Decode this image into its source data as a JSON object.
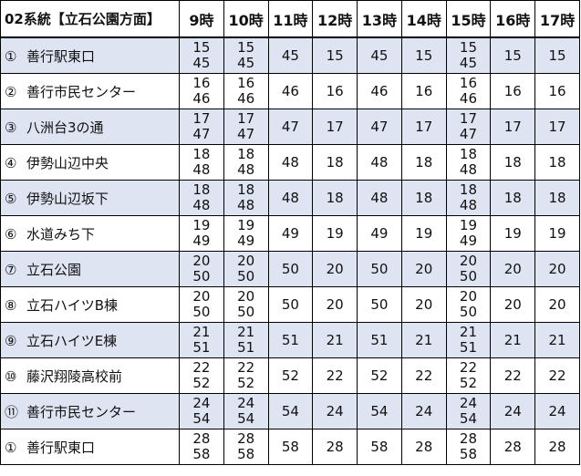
{
  "header": {
    "route": "02系統【立石公園方面】",
    "hours": [
      "9時",
      "10時",
      "11時",
      "12時",
      "13時",
      "14時",
      "15時",
      "16時",
      "17時"
    ]
  },
  "colors": {
    "shaded_row": "#dfe4f3",
    "border": "#000000"
  },
  "rows": [
    {
      "num": "①",
      "stop": "善行駅東口",
      "times": [
        [
          "15",
          "45"
        ],
        [
          "15",
          "45"
        ],
        [
          "45"
        ],
        [
          "15"
        ],
        [
          "45"
        ],
        [
          "15"
        ],
        [
          "15",
          "45"
        ],
        [
          "15"
        ],
        [
          "15"
        ]
      ]
    },
    {
      "num": "②",
      "stop": "善行市民センター",
      "times": [
        [
          "16",
          "46"
        ],
        [
          "16",
          "46"
        ],
        [
          "46"
        ],
        [
          "16"
        ],
        [
          "46"
        ],
        [
          "16"
        ],
        [
          "16",
          "46"
        ],
        [
          "16"
        ],
        [
          "16"
        ]
      ]
    },
    {
      "num": "③",
      "stop": "八洲台3の通",
      "times": [
        [
          "17",
          "47"
        ],
        [
          "17",
          "47"
        ],
        [
          "47"
        ],
        [
          "17"
        ],
        [
          "47"
        ],
        [
          "17"
        ],
        [
          "17",
          "47"
        ],
        [
          "17"
        ],
        [
          "17"
        ]
      ]
    },
    {
      "num": "④",
      "stop": "伊勢山辺中央",
      "times": [
        [
          "18",
          "48"
        ],
        [
          "18",
          "48"
        ],
        [
          "48"
        ],
        [
          "18"
        ],
        [
          "48"
        ],
        [
          "18"
        ],
        [
          "18",
          "48"
        ],
        [
          "18"
        ],
        [
          "18"
        ]
      ]
    },
    {
      "num": "⑤",
      "stop": "伊勢山辺坂下",
      "times": [
        [
          "18",
          "48"
        ],
        [
          "18",
          "48"
        ],
        [
          "48"
        ],
        [
          "18"
        ],
        [
          "48"
        ],
        [
          "18"
        ],
        [
          "18",
          "48"
        ],
        [
          "18"
        ],
        [
          "18"
        ]
      ]
    },
    {
      "num": "⑥",
      "stop": "水道みち下",
      "times": [
        [
          "19",
          "49"
        ],
        [
          "19",
          "49"
        ],
        [
          "49"
        ],
        [
          "19"
        ],
        [
          "49"
        ],
        [
          "19"
        ],
        [
          "19",
          "49"
        ],
        [
          "19"
        ],
        [
          "19"
        ]
      ]
    },
    {
      "num": "⑦",
      "stop": "立石公園",
      "times": [
        [
          "20",
          "50"
        ],
        [
          "20",
          "50"
        ],
        [
          "50"
        ],
        [
          "20"
        ],
        [
          "50"
        ],
        [
          "20"
        ],
        [
          "20",
          "50"
        ],
        [
          "20"
        ],
        [
          "20"
        ]
      ]
    },
    {
      "num": "⑧",
      "stop": "立石ハイツB棟",
      "times": [
        [
          "20",
          "50"
        ],
        [
          "20",
          "50"
        ],
        [
          "50"
        ],
        [
          "20"
        ],
        [
          "50"
        ],
        [
          "20"
        ],
        [
          "20",
          "50"
        ],
        [
          "20"
        ],
        [
          "20"
        ]
      ]
    },
    {
      "num": "⑨",
      "stop": "立石ハイツE棟",
      "times": [
        [
          "21",
          "51"
        ],
        [
          "21",
          "51"
        ],
        [
          "51"
        ],
        [
          "21"
        ],
        [
          "51"
        ],
        [
          "21"
        ],
        [
          "21",
          "51"
        ],
        [
          "21"
        ],
        [
          "21"
        ]
      ]
    },
    {
      "num": "⑩",
      "stop": "藤沢翔陵高校前",
      "times": [
        [
          "22",
          "52"
        ],
        [
          "22",
          "52"
        ],
        [
          "52"
        ],
        [
          "22"
        ],
        [
          "52"
        ],
        [
          "22"
        ],
        [
          "22",
          "52"
        ],
        [
          "22"
        ],
        [
          "22"
        ]
      ]
    },
    {
      "num": "⑪",
      "stop": "善行市民センター",
      "times": [
        [
          "24",
          "54"
        ],
        [
          "24",
          "54"
        ],
        [
          "54"
        ],
        [
          "24"
        ],
        [
          "54"
        ],
        [
          "24"
        ],
        [
          "24",
          "54"
        ],
        [
          "24"
        ],
        [
          "24"
        ]
      ]
    },
    {
      "num": "①",
      "stop": "善行駅東口",
      "times": [
        [
          "28",
          "58"
        ],
        [
          "28",
          "58"
        ],
        [
          "58"
        ],
        [
          "28"
        ],
        [
          "58"
        ],
        [
          "28"
        ],
        [
          "28",
          "58"
        ],
        [
          "28"
        ],
        [
          "28"
        ]
      ]
    }
  ]
}
